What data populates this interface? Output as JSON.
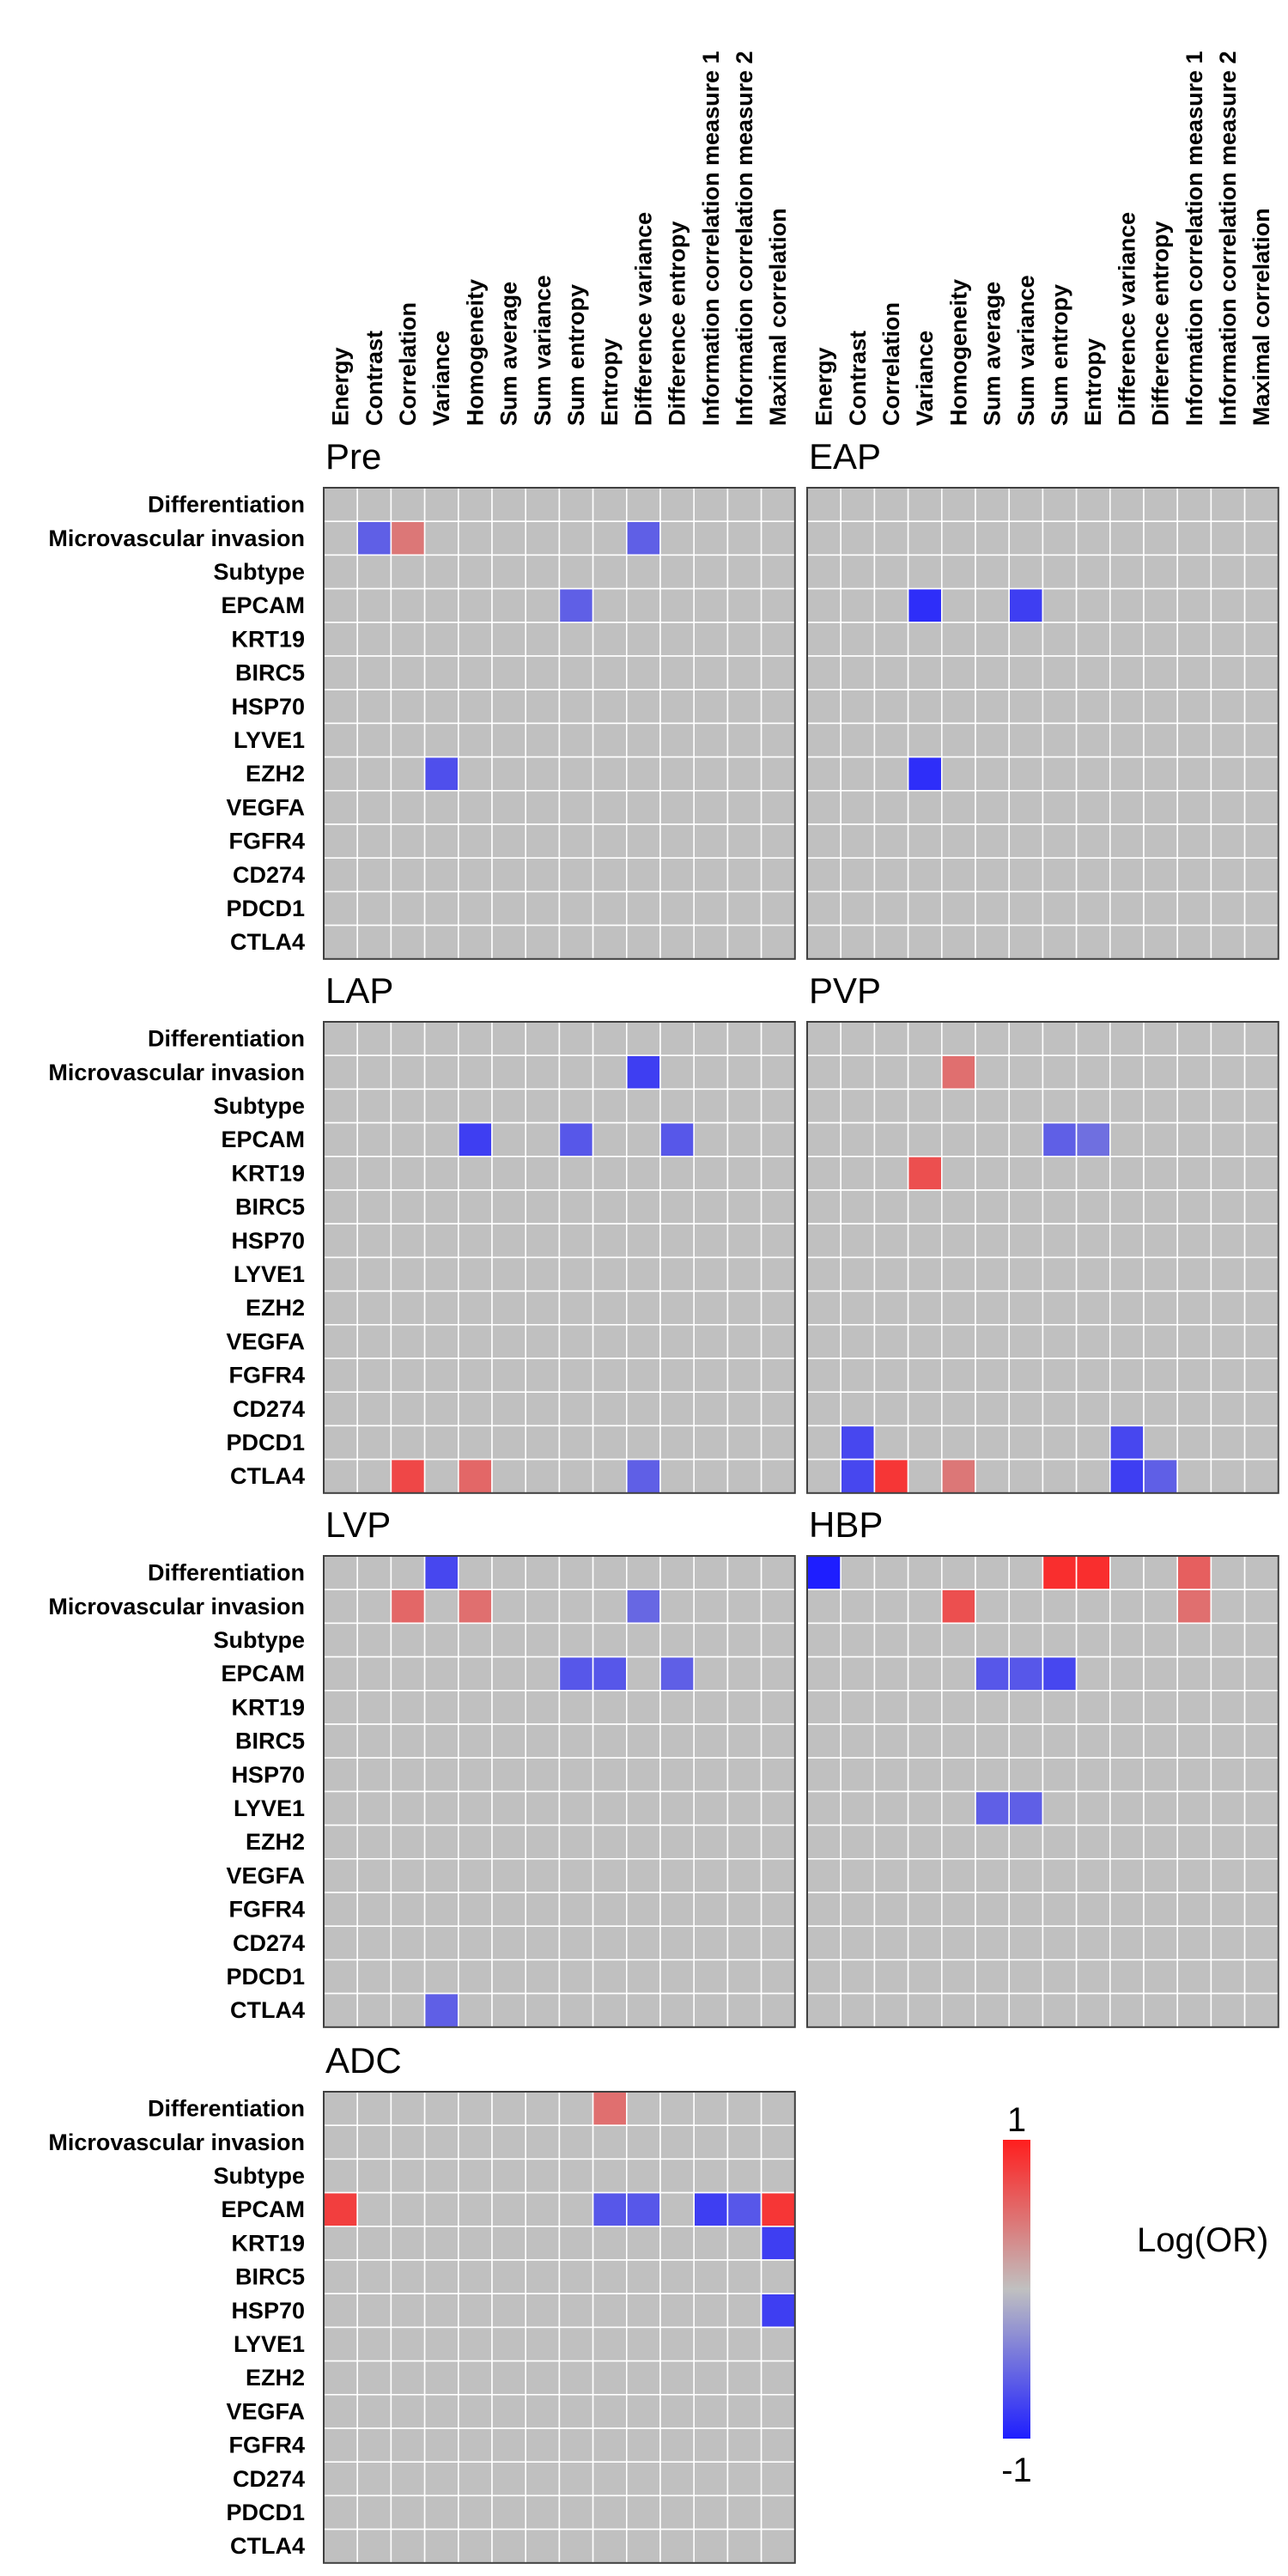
{
  "chart_data": {
    "type": "heatmap",
    "columns": [
      "Energy",
      "Contrast",
      "Correlation",
      "Variance",
      "Homogeneity",
      "Sum average",
      "Sum variance",
      "Sum entropy",
      "Entropy",
      "Difference variance",
      "Difference entropy",
      "Information correlation measure 1",
      "Information correlation measure 2",
      "Maximal correlation"
    ],
    "rows": [
      "Differentiation",
      "Microvascular invasion",
      "Subtype",
      "EPCAM",
      "KRT19",
      "BIRC5",
      "HSP70",
      "LYVE1",
      "EZH2",
      "VEGFA",
      "FGFR4",
      "CD274",
      "PDCD1",
      "CTLA4"
    ],
    "panels": [
      {
        "title": "Pre",
        "cells": [
          [
            1,
            1,
            -0.6
          ],
          [
            1,
            2,
            0.45
          ],
          [
            1,
            9,
            -0.6
          ],
          [
            3,
            7,
            -0.6
          ],
          [
            8,
            3,
            -0.7
          ]
        ]
      },
      {
        "title": "EAP",
        "cells": [
          [
            3,
            3,
            -0.9
          ],
          [
            3,
            6,
            -0.8
          ],
          [
            8,
            3,
            -0.9
          ]
        ]
      },
      {
        "title": "LAP",
        "cells": [
          [
            1,
            9,
            -0.8
          ],
          [
            3,
            4,
            -0.8
          ],
          [
            3,
            7,
            -0.65
          ],
          [
            3,
            10,
            -0.65
          ],
          [
            13,
            2,
            0.75
          ],
          [
            13,
            4,
            0.55
          ],
          [
            13,
            9,
            -0.6
          ]
        ]
      },
      {
        "title": "PVP",
        "cells": [
          [
            1,
            4,
            0.5
          ],
          [
            3,
            7,
            -0.6
          ],
          [
            3,
            8,
            -0.5
          ],
          [
            4,
            3,
            0.7
          ],
          [
            12,
            1,
            -0.75
          ],
          [
            12,
            9,
            -0.75
          ],
          [
            13,
            1,
            -0.75
          ],
          [
            13,
            2,
            0.85
          ],
          [
            13,
            4,
            0.45
          ],
          [
            13,
            9,
            -0.8
          ],
          [
            13,
            10,
            -0.6
          ]
        ]
      },
      {
        "title": "LVP",
        "cells": [
          [
            0,
            3,
            -0.75
          ],
          [
            1,
            2,
            0.55
          ],
          [
            1,
            4,
            0.5
          ],
          [
            1,
            9,
            -0.55
          ],
          [
            3,
            7,
            -0.65
          ],
          [
            3,
            8,
            -0.65
          ],
          [
            3,
            10,
            -0.6
          ],
          [
            13,
            3,
            -0.6
          ]
        ]
      },
      {
        "title": "HBP",
        "cells": [
          [
            0,
            0,
            -1.0
          ],
          [
            0,
            7,
            0.9
          ],
          [
            0,
            8,
            0.9
          ],
          [
            0,
            11,
            0.6
          ],
          [
            1,
            4,
            0.7
          ],
          [
            1,
            11,
            0.5
          ],
          [
            3,
            5,
            -0.65
          ],
          [
            3,
            6,
            -0.65
          ],
          [
            3,
            7,
            -0.75
          ],
          [
            7,
            5,
            -0.6
          ],
          [
            7,
            6,
            -0.6
          ]
        ]
      },
      {
        "title": "ADC",
        "cells": [
          [
            0,
            8,
            0.5
          ],
          [
            3,
            0,
            0.8
          ],
          [
            3,
            8,
            -0.65
          ],
          [
            3,
            9,
            -0.65
          ],
          [
            3,
            11,
            -0.8
          ],
          [
            3,
            12,
            -0.65
          ],
          [
            3,
            13,
            0.85
          ],
          [
            4,
            13,
            -0.8
          ],
          [
            6,
            13,
            -0.8
          ]
        ]
      }
    ],
    "colorbar": {
      "max_label": "1",
      "min_label": "-1",
      "title": "Log(OR)",
      "range": [
        -1,
        1
      ],
      "low_color": "#1e1eff",
      "mid_color": "#c0c0c0",
      "high_color": "#ff1e1e"
    },
    "cell_background": "#c0c0c0"
  }
}
